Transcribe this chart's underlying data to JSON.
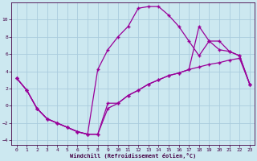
{
  "xlabel": "Windchill (Refroidissement éolien,°C)",
  "background_color": "#cce8f0",
  "grid_color": "#aaccdd",
  "line_color": "#990099",
  "xlim": [
    -0.5,
    23.5
  ],
  "ylim": [
    -4.5,
    12.0
  ],
  "xticks": [
    0,
    1,
    2,
    3,
    4,
    5,
    6,
    7,
    8,
    9,
    10,
    11,
    12,
    13,
    14,
    15,
    16,
    17,
    18,
    19,
    20,
    21,
    22,
    23
  ],
  "yticks": [
    -4,
    -2,
    0,
    2,
    4,
    6,
    8,
    10
  ],
  "curve1_x": [
    0,
    1,
    2,
    3,
    4,
    5,
    6,
    7,
    8,
    9,
    10,
    11,
    12,
    13,
    14,
    15,
    16,
    17,
    18,
    19,
    20,
    21,
    22,
    23
  ],
  "curve1_y": [
    3.2,
    1.8,
    -0.3,
    -1.5,
    -2.0,
    -2.5,
    -3.0,
    -3.3,
    -3.3,
    -0.3,
    0.3,
    1.2,
    1.8,
    2.5,
    3.0,
    3.5,
    3.8,
    4.2,
    4.5,
    4.8,
    5.0,
    5.3,
    5.5,
    2.5
  ],
  "curve2_x": [
    0,
    1,
    2,
    3,
    4,
    5,
    6,
    7,
    8,
    9,
    10,
    11,
    12,
    13,
    14,
    15,
    16,
    17,
    18,
    19,
    20,
    21,
    22,
    23
  ],
  "curve2_y": [
    3.2,
    1.8,
    -0.3,
    -1.5,
    -2.0,
    -2.5,
    -3.0,
    -3.3,
    4.2,
    6.5,
    8.0,
    9.2,
    11.3,
    11.5,
    11.5,
    10.5,
    9.2,
    7.5,
    5.8,
    7.5,
    6.5,
    6.3,
    5.8,
    2.5
  ],
  "curve3_x": [
    0,
    1,
    2,
    3,
    4,
    5,
    6,
    7,
    8,
    9,
    10,
    11,
    12,
    13,
    14,
    15,
    16,
    17,
    18,
    19,
    20,
    21,
    22,
    23
  ],
  "curve3_y": [
    3.2,
    1.8,
    -0.3,
    -1.5,
    -2.0,
    -2.5,
    -3.0,
    -3.3,
    -3.3,
    0.3,
    0.3,
    1.2,
    1.8,
    2.5,
    3.0,
    3.5,
    3.8,
    4.2,
    9.2,
    7.5,
    7.5,
    6.3,
    5.8,
    2.5
  ]
}
